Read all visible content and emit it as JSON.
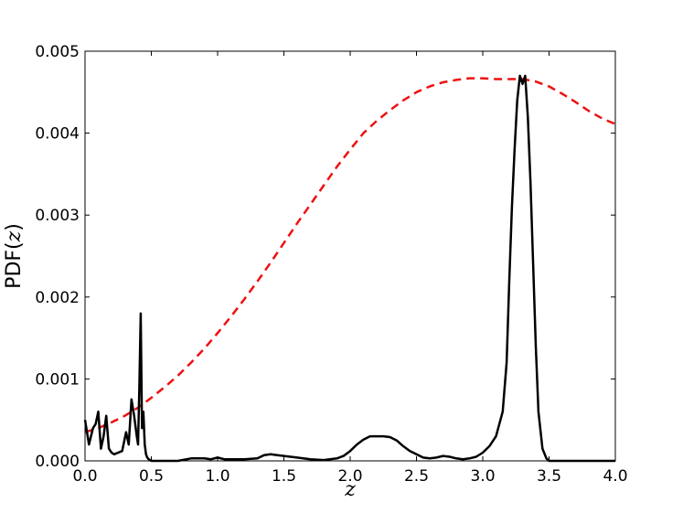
{
  "chart_data": {
    "type": "line",
    "title": "",
    "xlabel": "z",
    "ylabel_prefix": "PDF(",
    "ylabel_var": "z",
    "ylabel_suffix": ")",
    "xlim": [
      0.0,
      4.0
    ],
    "ylim": [
      0.0,
      0.005
    ],
    "xticks": [
      0.0,
      0.5,
      1.0,
      1.5,
      2.0,
      2.5,
      3.0,
      3.5,
      4.0
    ],
    "xtick_labels": [
      "0.0",
      "0.5",
      "1.0",
      "1.5",
      "2.0",
      "2.5",
      "3.0",
      "3.5",
      "4.0"
    ],
    "yticks": [
      0.0,
      0.001,
      0.002,
      0.003,
      0.004,
      0.005
    ],
    "ytick_labels": [
      "0.000",
      "0.001",
      "0.002",
      "0.003",
      "0.004",
      "0.005"
    ],
    "grid": false,
    "legend": "none",
    "series": [
      {
        "style": "solid",
        "color": "#000000",
        "x": [
          0.0,
          0.03,
          0.06,
          0.08,
          0.1,
          0.12,
          0.14,
          0.16,
          0.18,
          0.2,
          0.22,
          0.25,
          0.28,
          0.31,
          0.33,
          0.35,
          0.37,
          0.39,
          0.4,
          0.41,
          0.42,
          0.43,
          0.44,
          0.45,
          0.46,
          0.47,
          0.48,
          0.5,
          0.55,
          0.6,
          0.7,
          0.8,
          0.9,
          0.95,
          1.0,
          1.05,
          1.1,
          1.2,
          1.3,
          1.35,
          1.4,
          1.45,
          1.5,
          1.6,
          1.7,
          1.8,
          1.9,
          1.95,
          2.0,
          2.05,
          2.1,
          2.15,
          2.2,
          2.25,
          2.3,
          2.35,
          2.4,
          2.45,
          2.5,
          2.55,
          2.6,
          2.65,
          2.7,
          2.75,
          2.8,
          2.85,
          2.9,
          2.95,
          3.0,
          3.05,
          3.1,
          3.15,
          3.18,
          3.2,
          3.22,
          3.24,
          3.26,
          3.28,
          3.3,
          3.32,
          3.34,
          3.36,
          3.38,
          3.4,
          3.42,
          3.45,
          3.48,
          3.5,
          3.55,
          3.6,
          3.7,
          3.8,
          3.9,
          4.0
        ],
        "y": [
          0.0005,
          0.0002,
          0.0004,
          0.00045,
          0.0006,
          0.00015,
          0.0003,
          0.00055,
          0.00015,
          0.0001,
          8e-05,
          0.0001,
          0.00012,
          0.00035,
          0.0002,
          0.00075,
          0.00055,
          0.0003,
          0.0002,
          0.0009,
          0.0018,
          0.0004,
          0.0006,
          0.0002,
          8e-05,
          4e-05,
          2e-05,
          0.0,
          0.0,
          0.0,
          0.0,
          3e-05,
          3e-05,
          2e-05,
          4e-05,
          2e-05,
          2e-05,
          2e-05,
          3e-05,
          7e-05,
          8e-05,
          7e-05,
          6e-05,
          4e-05,
          2e-05,
          1e-05,
          3e-05,
          6e-05,
          0.00012,
          0.0002,
          0.00026,
          0.0003,
          0.0003,
          0.0003,
          0.00029,
          0.00025,
          0.00018,
          0.00012,
          8e-05,
          4e-05,
          3e-05,
          4e-05,
          6e-05,
          5e-05,
          3e-05,
          2e-05,
          3e-05,
          5e-05,
          0.0001,
          0.00018,
          0.0003,
          0.0006,
          0.0012,
          0.0022,
          0.0031,
          0.0038,
          0.0044,
          0.0047,
          0.0046,
          0.0047,
          0.0042,
          0.0034,
          0.0024,
          0.0014,
          0.0006,
          0.00015,
          3e-05,
          0.0,
          0.0,
          0.0,
          0.0,
          0.0,
          0.0,
          0.0
        ]
      },
      {
        "style": "dashed",
        "color": "#ee1111",
        "x": [
          0.0,
          0.1,
          0.2,
          0.3,
          0.4,
          0.5,
          0.6,
          0.7,
          0.8,
          0.9,
          1.0,
          1.1,
          1.2,
          1.3,
          1.4,
          1.5,
          1.6,
          1.7,
          1.8,
          1.9,
          2.0,
          2.1,
          2.2,
          2.3,
          2.4,
          2.5,
          2.6,
          2.7,
          2.8,
          2.9,
          3.0,
          3.1,
          3.2,
          3.3,
          3.4,
          3.5,
          3.6,
          3.7,
          3.8,
          3.9,
          4.0
        ],
        "y": [
          0.00035,
          0.0004,
          0.00047,
          0.00055,
          0.00065,
          0.00077,
          0.0009,
          0.00104,
          0.0012,
          0.00137,
          0.00156,
          0.00176,
          0.00197,
          0.00219,
          0.00242,
          0.00266,
          0.0029,
          0.00313,
          0.00336,
          0.00359,
          0.0038,
          0.004,
          0.00415,
          0.00428,
          0.0044,
          0.0045,
          0.00457,
          0.00462,
          0.00465,
          0.00467,
          0.00467,
          0.00466,
          0.00466,
          0.00466,
          0.00463,
          0.00457,
          0.00448,
          0.00438,
          0.00427,
          0.00418,
          0.00411
        ]
      }
    ]
  }
}
